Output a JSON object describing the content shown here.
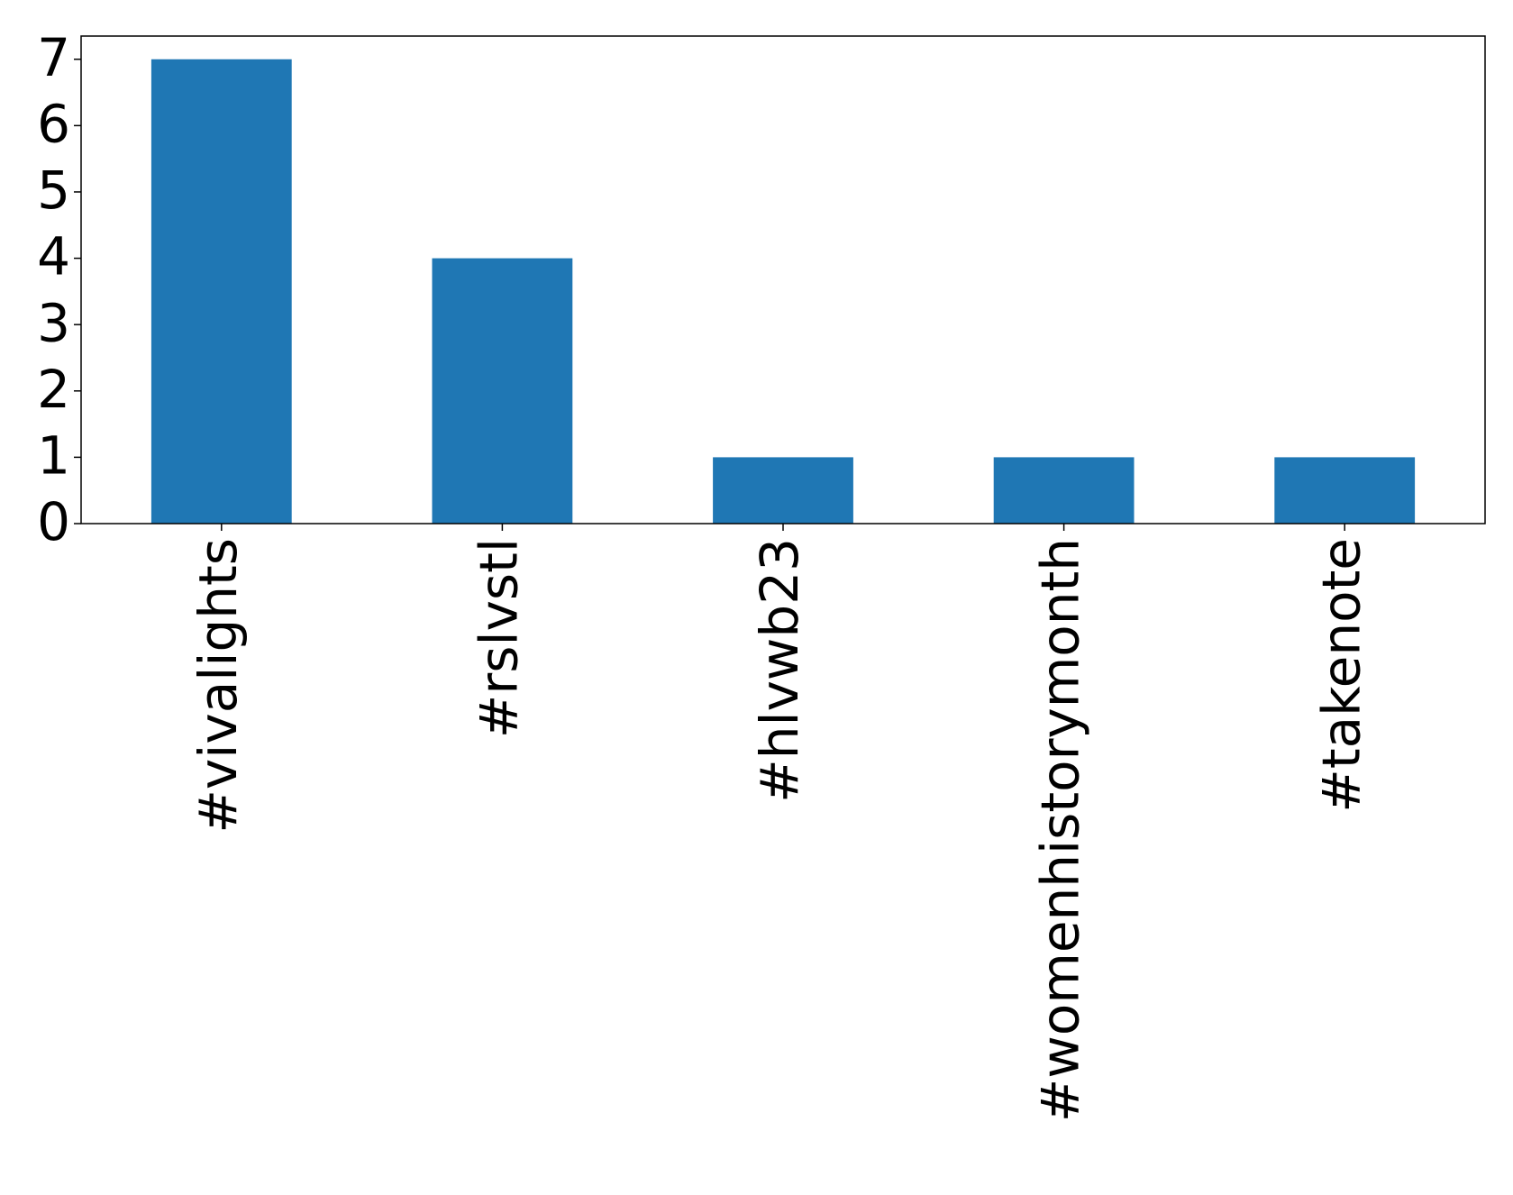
{
  "chart_data": {
    "type": "bar",
    "categories": [
      "#vivalights",
      "#rslvstl",
      "#hlvwb23",
      "#womenhistorymonth",
      "#takenote"
    ],
    "values": [
      7,
      4,
      1,
      1,
      1
    ],
    "color": "#1f77b4",
    "ylim": [
      0,
      7.35
    ],
    "yticks": [
      0,
      1,
      2,
      3,
      4,
      5,
      6,
      7
    ],
    "grid": false
  }
}
